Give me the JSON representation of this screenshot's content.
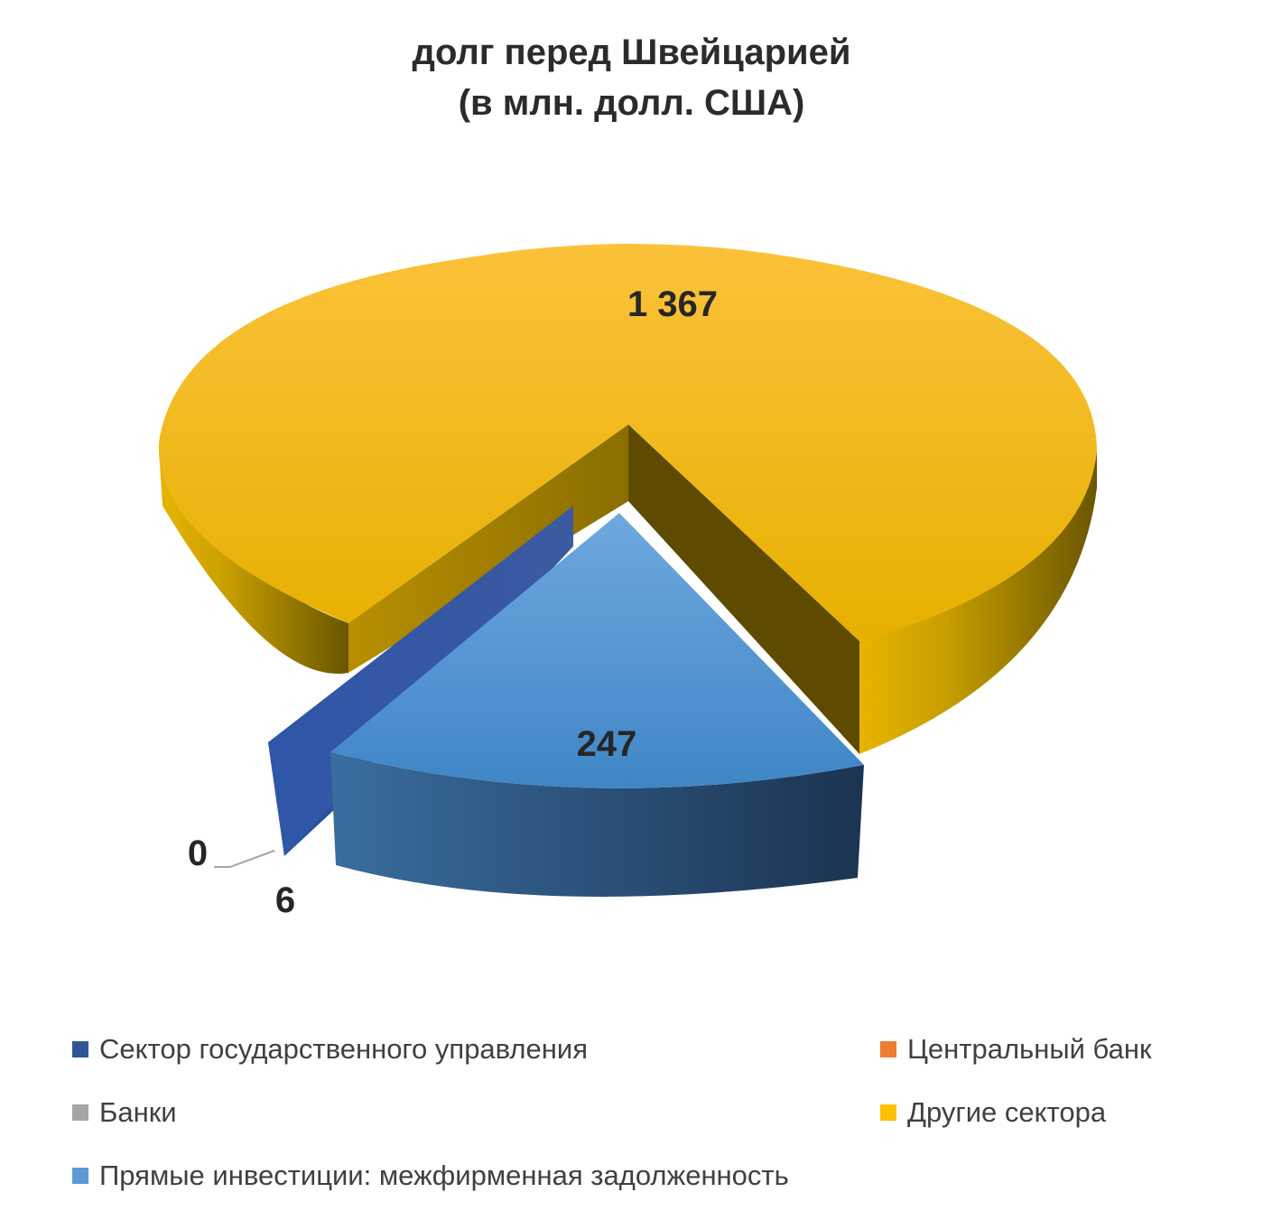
{
  "chart_data": {
    "type": "pie",
    "title_line1": "долг перед Швейцарией",
    "title_line2": "(в млн. долл. США)",
    "slices": [
      {
        "name": "Сектор государственного управления",
        "value": 6,
        "label": "6",
        "color": "#2f5597"
      },
      {
        "name": "Центральный банк",
        "value": 0,
        "label": "",
        "color": "#ed7d31"
      },
      {
        "name": "Банки",
        "value": 0,
        "label": "0",
        "color": "#a5a5a5"
      },
      {
        "name": "Другие сектора",
        "value": 1367,
        "label": "1 367",
        "color": "#ffc000"
      },
      {
        "name": "Прямые инвестиции: межфирменная задолженность",
        "value": 247,
        "label": "247",
        "color": "#5b9bd5"
      }
    ],
    "legend_position": "bottom",
    "style": "3d-exploded"
  }
}
